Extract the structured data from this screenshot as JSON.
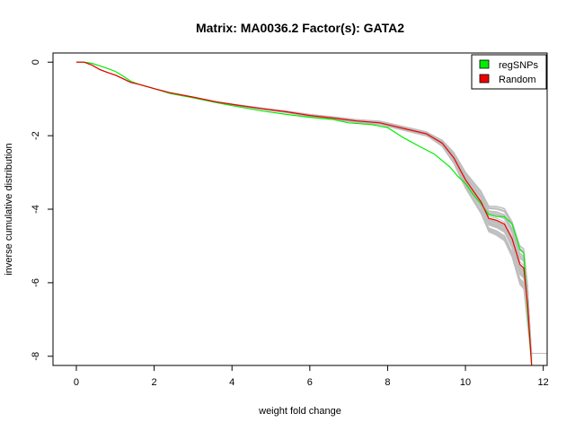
{
  "chart_data": {
    "type": "line",
    "title": "Matrix: MA0036.2 Factor(s): GATA2",
    "xlabel": "weight fold change",
    "ylabel": "inverse cumulative distribution",
    "xlim": [
      -0.6,
      12.1
    ],
    "ylim": [
      -8.25,
      0.25
    ],
    "xticks": [
      0,
      2,
      4,
      6,
      8,
      10,
      12
    ],
    "yticks": [
      0,
      -2,
      -4,
      -6,
      -8
    ],
    "legend": {
      "position": "top-right",
      "entries": [
        {
          "label": "regSNPs",
          "color": "#00ee00"
        },
        {
          "label": "Random",
          "color": "#ee0000"
        }
      ]
    },
    "colors": {
      "regSNPs": "#00ee00",
      "Random": "#ee0000",
      "background_random": "#bebebe"
    },
    "series": [
      {
        "name": "regSNPs",
        "x": [
          0,
          0.2,
          0.4,
          0.6,
          0.8,
          1.0,
          1.2,
          1.4,
          1.6,
          2.0,
          2.4,
          3.0,
          3.6,
          4.2,
          4.8,
          5.4,
          6.0,
          6.6,
          7.0,
          7.6,
          8.0,
          8.4,
          8.8,
          9.2,
          9.6,
          9.8,
          10.0,
          10.2,
          10.4,
          10.6,
          10.8,
          11.0,
          11.2,
          11.4,
          11.5,
          11.6,
          11.7
        ],
        "y": [
          0,
          0,
          -0.03,
          -0.1,
          -0.17,
          -0.25,
          -0.38,
          -0.52,
          -0.6,
          -0.72,
          -0.85,
          -0.97,
          -1.1,
          -1.22,
          -1.33,
          -1.42,
          -1.5,
          -1.56,
          -1.65,
          -1.7,
          -1.78,
          -2.05,
          -2.28,
          -2.5,
          -2.85,
          -3.1,
          -3.3,
          -3.6,
          -3.85,
          -4.15,
          -4.2,
          -4.2,
          -4.4,
          -5.1,
          -5.2,
          -6.8,
          -8.25
        ]
      },
      {
        "name": "Random",
        "x": [
          0,
          0.2,
          0.4,
          0.6,
          0.8,
          1.0,
          1.2,
          1.4,
          1.6,
          2.0,
          2.4,
          3.0,
          3.6,
          4.2,
          4.8,
          5.4,
          6.0,
          6.6,
          7.2,
          7.8,
          8.2,
          8.6,
          9.0,
          9.4,
          9.7,
          10.0,
          10.2,
          10.4,
          10.6,
          10.8,
          11.0,
          11.2,
          11.4,
          11.5,
          11.6,
          11.7
        ],
        "y": [
          0,
          0,
          -0.08,
          -0.2,
          -0.28,
          -0.35,
          -0.45,
          -0.55,
          -0.6,
          -0.72,
          -0.83,
          -0.95,
          -1.08,
          -1.18,
          -1.27,
          -1.35,
          -1.45,
          -1.52,
          -1.6,
          -1.65,
          -1.75,
          -1.85,
          -1.95,
          -2.2,
          -2.6,
          -3.2,
          -3.5,
          -3.8,
          -4.25,
          -4.3,
          -4.4,
          -4.8,
          -5.5,
          -5.6,
          -6.6,
          -8.25
        ]
      }
    ]
  }
}
